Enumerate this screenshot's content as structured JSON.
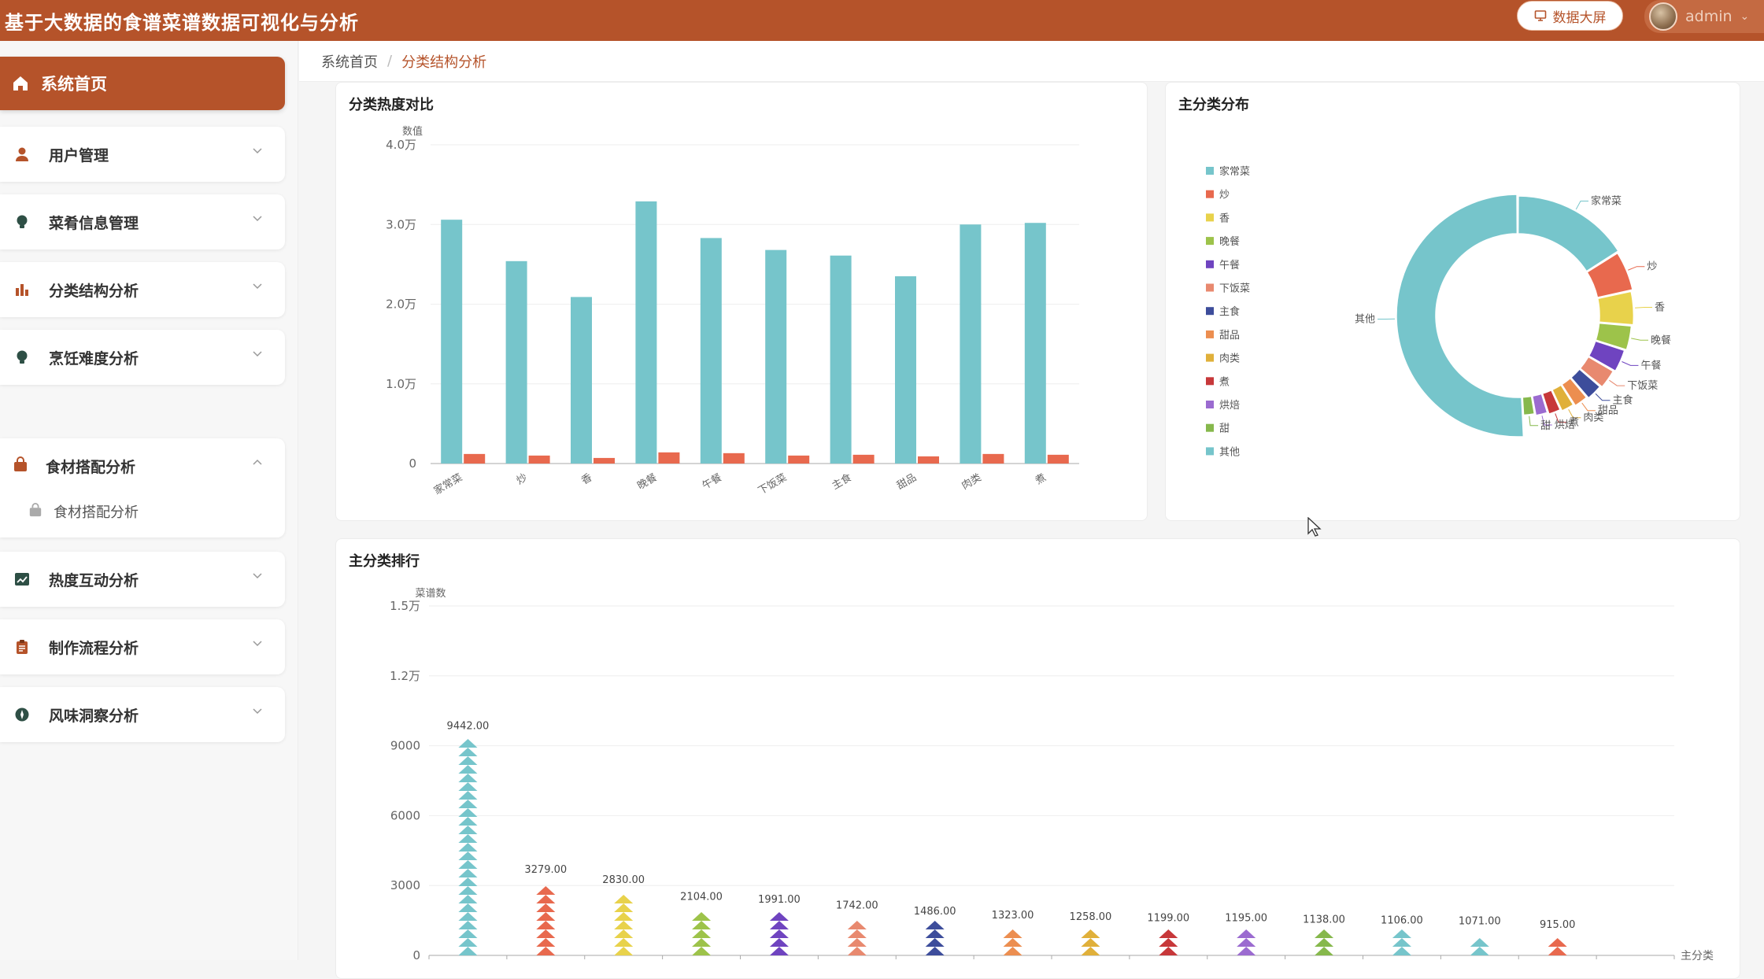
{
  "header": {
    "title": "基于大数据的食谱菜谱数据可视化与分析",
    "screen_button": "数据大屏",
    "username": "admin"
  },
  "sidebar": {
    "home": "系统首页",
    "items": [
      {
        "label": "用户管理",
        "icon": "user-icon"
      },
      {
        "label": "菜肴信息管理",
        "icon": "bulb-icon"
      },
      {
        "label": "分类结构分析",
        "icon": "bar-chart-icon"
      },
      {
        "label": "烹饪难度分析",
        "icon": "bulb-icon"
      },
      {
        "label": "食材搭配分析",
        "icon": "bag-icon",
        "expanded": true,
        "sub": "食材搭配分析"
      },
      {
        "label": "热度互动分析",
        "icon": "trend-chart-icon"
      },
      {
        "label": "制作流程分析",
        "icon": "clipboard-icon"
      },
      {
        "label": "风味洞察分析",
        "icon": "compass-icon"
      }
    ]
  },
  "breadcrumb": {
    "home": "系统首页",
    "separator": "/",
    "current": "分类结构分析"
  },
  "colors": {
    "accent": "#b5532a",
    "palette": [
      "#76c5cb",
      "#e8694e",
      "#e8d24b",
      "#9dc34a",
      "#6f44c0",
      "#e8896f",
      "#3d4d9b",
      "#ec8e50",
      "#e0b03a",
      "#c7383a",
      "#9b6bd0",
      "#86b84c",
      "#76c5cb"
    ]
  },
  "chart_data": [
    {
      "type": "bar",
      "title": "分类热度对比",
      "ylabel": "数值",
      "ylim": [
        0,
        40000
      ],
      "yticks": [
        "0",
        "1.0万",
        "2.0万",
        "3.0万",
        "4.0万"
      ],
      "categories": [
        "家常菜",
        "炒",
        "香",
        "晚餐",
        "午餐",
        "下饭菜",
        "主食",
        "甜品",
        "肉类",
        "煮"
      ],
      "series": [
        {
          "color": "#76c5cb",
          "values": [
            30600,
            25400,
            20900,
            32900,
            28300,
            26800,
            26100,
            23500,
            30000,
            30200
          ]
        },
        {
          "color": "#e8694e",
          "values": [
            1200,
            1000,
            700,
            1400,
            1300,
            1000,
            1100,
            900,
            1200,
            1100
          ]
        }
      ]
    },
    {
      "type": "pie",
      "title": "主分类分布",
      "legend": [
        "家常菜",
        "炒",
        "香",
        "晚餐",
        "午餐",
        "下饭菜",
        "主食",
        "甜品",
        "肉类",
        "煮",
        "烘焙",
        "甜",
        "其他"
      ],
      "values": [
        9442,
        3279,
        2830,
        2104,
        1991,
        1742,
        1486,
        1323,
        1258,
        1199,
        1195,
        1138,
        30000
      ]
    },
    {
      "type": "bar",
      "title": "主分类排行",
      "ylabel": "菜谱数",
      "xlabel": "主分类",
      "ylim": [
        0,
        15000
      ],
      "yticks": [
        "0",
        "3000",
        "6000",
        "9000",
        "1.2万",
        "1.5万"
      ],
      "values": [
        9442,
        3279,
        2830,
        2104,
        1991,
        1742,
        1486,
        1323,
        1258,
        1199,
        1195,
        1138,
        1106,
        1071,
        915
      ],
      "labels": [
        "9442.00",
        "3279.00",
        "2830.00",
        "2104.00",
        "1991.00",
        "1742.00",
        "1486.00",
        "1323.00",
        "1258.00",
        "1199.00",
        "1195.00",
        "1138.00",
        "1106.00",
        "1071.00",
        "915.00"
      ]
    }
  ]
}
